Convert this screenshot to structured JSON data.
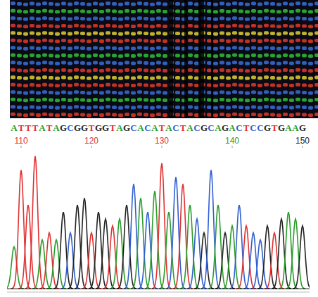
{
  "chart_data": {
    "type": "chromatogram",
    "x": [
      109,
      110,
      111,
      112,
      113,
      114,
      115,
      116,
      117,
      118,
      119,
      120,
      121,
      122,
      123,
      124,
      125,
      126,
      127,
      128,
      129,
      130,
      131,
      132,
      133,
      134,
      135,
      136,
      137,
      138,
      139,
      140,
      141,
      142,
      143,
      144,
      145,
      146,
      147,
      148,
      149,
      150
    ],
    "categories": [
      "A",
      "T",
      "T",
      "T",
      "A",
      "T",
      "A",
      "G",
      "C",
      "G",
      "G",
      "T",
      "G",
      "G",
      "T",
      "A",
      "G",
      "C",
      "A",
      "C",
      "A",
      "T",
      "A",
      "C",
      "T",
      "A",
      "C",
      "G",
      "C",
      "A",
      "G",
      "A",
      "C",
      "T",
      "C",
      "C",
      "G",
      "T",
      "G",
      "A",
      "A",
      "G"
    ],
    "values": [
      30,
      85,
      60,
      95,
      35,
      40,
      35,
      55,
      40,
      60,
      65,
      40,
      55,
      50,
      45,
      50,
      60,
      75,
      65,
      55,
      70,
      90,
      55,
      80,
      75,
      60,
      50,
      40,
      85,
      60,
      40,
      45,
      60,
      45,
      40,
      35,
      45,
      40,
      50,
      55,
      50,
      45
    ],
    "colors": [
      "#2a9d2a",
      "#e03030",
      "#e03030",
      "#e03030",
      "#2a9d2a",
      "#e03030",
      "#2a9d2a",
      "#222222",
      "#2f5fd0",
      "#222222",
      "#222222",
      "#e03030",
      "#222222",
      "#222222",
      "#e03030",
      "#2a9d2a",
      "#222222",
      "#2f5fd0",
      "#2a9d2a",
      "#2f5fd0",
      "#2a9d2a",
      "#e03030",
      "#2a9d2a",
      "#2f5fd0",
      "#e03030",
      "#2a9d2a",
      "#2f5fd0",
      "#222222",
      "#2f5fd0",
      "#2a9d2a",
      "#222222",
      "#2a9d2a",
      "#2f5fd0",
      "#e03030",
      "#2f5fd0",
      "#2f5fd0",
      "#222222",
      "#e03030",
      "#222222",
      "#2a9d2a",
      "#2a9d2a",
      "#222222"
    ],
    "xlim": [
      108,
      151
    ],
    "ylim": [
      0,
      100
    ],
    "xticks": [
      110,
      120,
      130,
      140,
      150
    ],
    "tick_labels": "x"
  }
}
